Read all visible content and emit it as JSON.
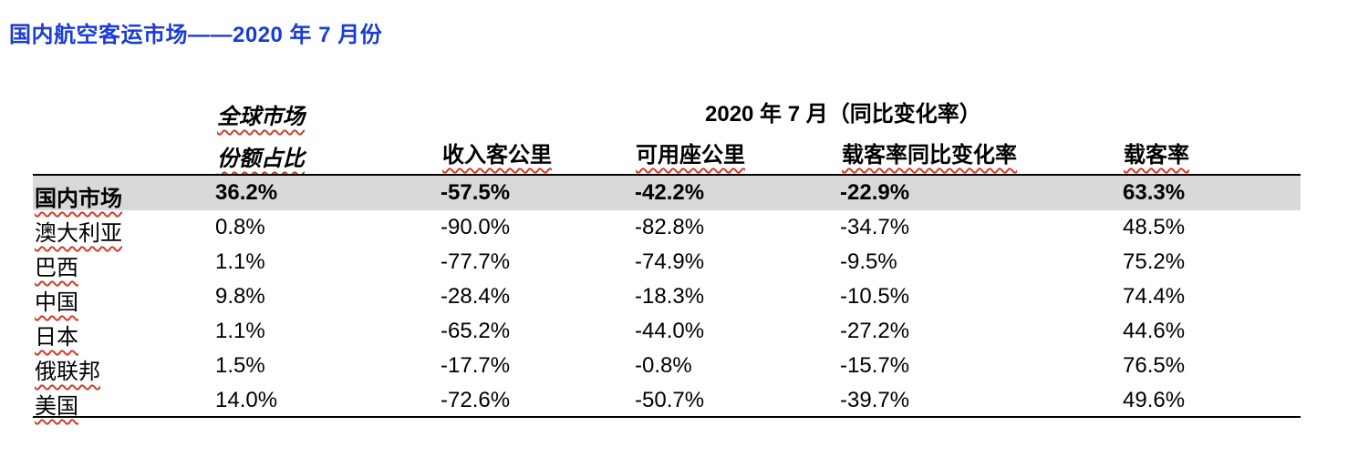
{
  "title": "国内航空客运市场——2020 年 7 月份",
  "header": {
    "share_line1": "全球市场",
    "share_line2": "份额占比",
    "group": "2020 年 7 月（同比变化率）",
    "columns": [
      "收入客公里",
      "可用座公里",
      "载客率同比变化率",
      "载客率"
    ]
  },
  "rows": [
    {
      "market": "国内市场",
      "share": "36.2%",
      "rpk": "-57.5%",
      "ask": "-42.2%",
      "plf_change": "-22.9%",
      "plf": "63.3%"
    },
    {
      "market": "澳大利亚",
      "share": "0.8%",
      "rpk": "-90.0%",
      "ask": "-82.8%",
      "plf_change": "-34.7%",
      "plf": "48.5%"
    },
    {
      "market": "巴西",
      "share": "1.1%",
      "rpk": "-77.7%",
      "ask": "-74.9%",
      "plf_change": "-9.5%",
      "plf": "75.2%"
    },
    {
      "market": "中国",
      "share": "9.8%",
      "rpk": "-28.4%",
      "ask": "-18.3%",
      "plf_change": "-10.5%",
      "plf": "74.4%"
    },
    {
      "market": "日本",
      "share": "1.1%",
      "rpk": "-65.2%",
      "ask": "-44.0%",
      "plf_change": "-27.2%",
      "plf": "44.6%"
    },
    {
      "market": "俄联邦",
      "share": "1.5%",
      "rpk": "-17.7%",
      "ask": "-0.8%",
      "plf_change": "-15.7%",
      "plf": "76.5%"
    },
    {
      "market": "美国",
      "share": "14.0%",
      "rpk": "-72.6%",
      "ask": "-50.7%",
      "plf_change": "-39.7%",
      "plf": "49.6%"
    }
  ]
}
